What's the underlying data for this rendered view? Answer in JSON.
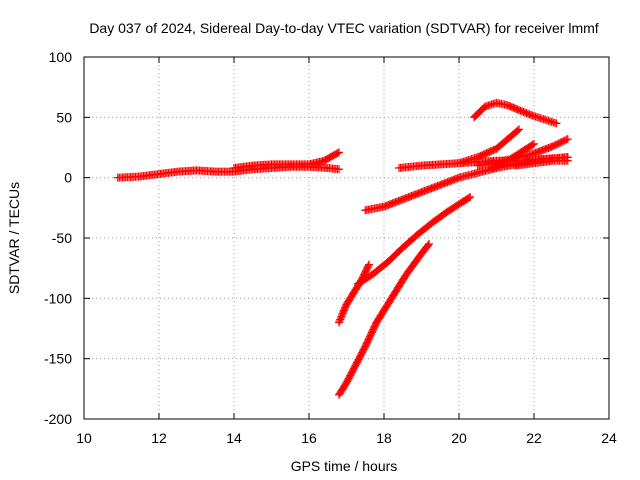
{
  "chart_data": {
    "type": "scatter",
    "title": "Day 037 of 2024, Sidereal Day-to-day VTEC variation (SDTVAR) for receiver lmmf",
    "xlabel": "GPS time / hours",
    "ylabel": "SDTVAR / TECUs",
    "xlim": [
      10,
      24
    ],
    "ylim": [
      -200,
      100
    ],
    "xticks": [
      "10",
      "12",
      "14",
      "16",
      "18",
      "20",
      "22",
      "24"
    ],
    "yticks": [
      "100",
      "50",
      "0",
      "-50",
      "-100",
      "-150",
      "-200"
    ],
    "grid": true,
    "marker": "plus",
    "series_color": "#ff0000",
    "series": [
      {
        "x": [
          10.9,
          11.5,
          12.0,
          12.5,
          13.0,
          13.5,
          14.0,
          14.5,
          15.0,
          15.5,
          16.0,
          16.5,
          16.8
        ],
        "y": [
          0,
          1,
          3,
          5,
          6,
          5,
          5,
          7,
          8,
          9,
          9,
          8,
          7
        ]
      },
      {
        "x": [
          14.0,
          14.5,
          15.0,
          15.5,
          16.0,
          16.4,
          16.8
        ],
        "y": [
          8,
          10,
          11,
          11,
          11,
          14,
          21
        ]
      },
      {
        "x": [
          16.8,
          17.0,
          17.2,
          17.5,
          17.8,
          18.2,
          18.6,
          19.0,
          19.2
        ],
        "y": [
          -180,
          -170,
          -158,
          -140,
          -120,
          -100,
          -80,
          -63,
          -55
        ]
      },
      {
        "x": [
          16.8,
          17.0,
          17.2,
          17.4,
          17.6
        ],
        "y": [
          -120,
          -105,
          -95,
          -85,
          -72
        ]
      },
      {
        "x": [
          17.3,
          17.7,
          18.1,
          18.5,
          18.9,
          19.3,
          19.7,
          20.1,
          20.3
        ],
        "y": [
          -88,
          -80,
          -70,
          -58,
          -47,
          -37,
          -28,
          -20,
          -16
        ]
      },
      {
        "x": [
          17.5,
          18.0,
          18.5,
          19.0,
          19.5,
          20.0,
          20.5,
          21.0,
          21.5,
          22.0,
          22.5,
          22.9
        ],
        "y": [
          -27,
          -24,
          -18,
          -12,
          -6,
          0,
          4,
          8,
          11,
          14,
          16,
          17
        ]
      },
      {
        "x": [
          18.4,
          19.0,
          19.5,
          20.0,
          20.5,
          21.0,
          21.5,
          22.0,
          22.5,
          22.9
        ],
        "y": [
          8,
          10,
          11,
          12,
          13,
          14,
          14,
          15,
          16,
          17
        ]
      },
      {
        "x": [
          20.0,
          20.5,
          21.0,
          21.3,
          21.6
        ],
        "y": [
          12,
          17,
          24,
          32,
          40
        ]
      },
      {
        "x": [
          20.5,
          21.0,
          21.5,
          22.0,
          22.5,
          22.9
        ],
        "y": [
          10,
          13,
          16,
          20,
          26,
          32
        ]
      },
      {
        "x": [
          20.9,
          21.3,
          21.6,
          22.0
        ],
        "y": [
          8,
          14,
          20,
          28
        ]
      },
      {
        "x": [
          21.5,
          22.0,
          22.5,
          22.9
        ],
        "y": [
          10,
          12,
          14,
          14
        ]
      },
      {
        "x": [
          20.4,
          20.7,
          21.0,
          21.3,
          21.6,
          22.0,
          22.3,
          22.6
        ],
        "y": [
          50,
          59,
          62,
          60,
          56,
          51,
          48,
          45
        ]
      }
    ]
  }
}
